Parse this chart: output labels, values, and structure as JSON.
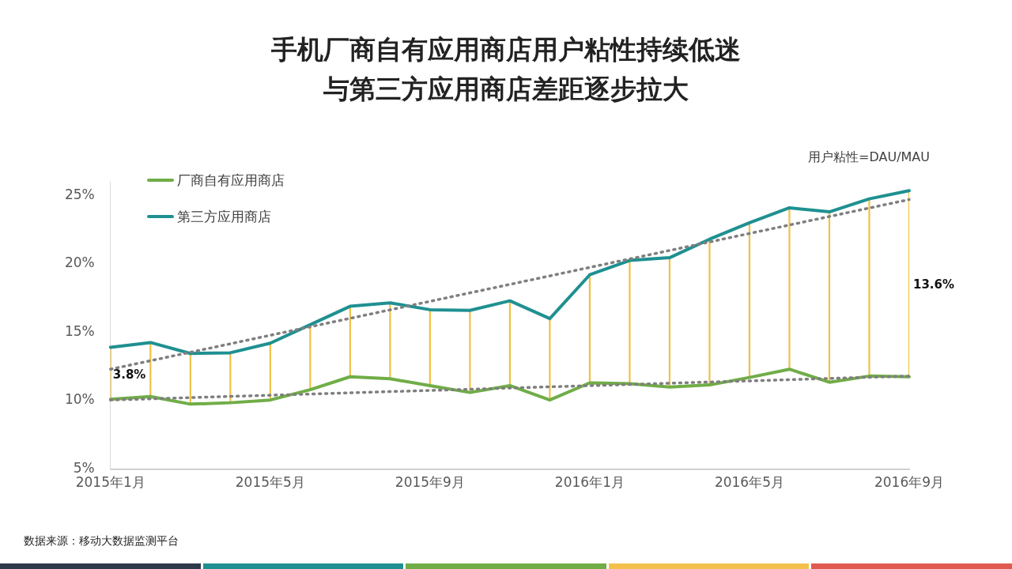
{
  "chart_data": {
    "type": "line",
    "title": "手机厂商自有应用商店用户粘性持续低迷与第三方应用商店差距逐步拉大",
    "categories": [
      "2015年1月",
      null,
      null,
      null,
      "2015年5月",
      null,
      null,
      null,
      "2015年9月",
      null,
      null,
      null,
      "2016年1月",
      null,
      null,
      null,
      "2016年5月",
      null,
      null,
      null,
      "2016年9月"
    ],
    "series": [
      {
        "type": "bar",
        "color": "#f0c040",
        "base": [
          10.1,
          10.3,
          9.75,
          9.85,
          10.05,
          10.8,
          11.75,
          11.6,
          11.1,
          10.6,
          11.1,
          10.05,
          11.3,
          11.25,
          11.0,
          11.15,
          11.7,
          12.3,
          11.35,
          11.8,
          11.75
        ],
        "values": [
          3.8,
          3.95,
          3.7,
          3.65,
          4.15,
          4.75,
          5.15,
          5.55,
          5.55,
          6.0,
          6.2,
          5.95,
          7.9,
          9.0,
          9.45,
          10.65,
          11.3,
          11.8,
          12.45,
          12.95,
          13.6
        ]
      },
      {
        "name": "厂商自有应用商店",
        "color": "#70ad47",
        "values": [
          10.1,
          10.3,
          9.75,
          9.85,
          10.05,
          10.8,
          11.75,
          11.6,
          11.1,
          10.6,
          11.1,
          10.05,
          11.3,
          11.25,
          11.0,
          11.15,
          11.7,
          12.3,
          11.35,
          11.8,
          11.75
        ]
      },
      {
        "name": "第三方应用商店",
        "color": "#1f9091",
        "values": [
          13.9,
          14.25,
          13.45,
          13.5,
          14.2,
          15.55,
          16.9,
          17.15,
          16.65,
          16.6,
          17.3,
          16.0,
          19.2,
          20.25,
          20.45,
          21.8,
          23.0,
          24.1,
          23.8,
          24.75,
          25.35
        ]
      },
      {
        "type": "line",
        "color": "#7f7f7f",
        "line_style": "dotted",
        "values": [
          10.05,
          null,
          null,
          null,
          null,
          null,
          null,
          null,
          null,
          null,
          null,
          null,
          null,
          null,
          null,
          null,
          null,
          null,
          null,
          null,
          11.8
        ]
      },
      {
        "type": "line",
        "color": "#7f7f7f",
        "line_style": "dotted",
        "values": [
          12.3,
          null,
          null,
          null,
          null,
          null,
          null,
          null,
          null,
          null,
          null,
          null,
          null,
          null,
          null,
          null,
          null,
          null,
          null,
          null,
          24.7
        ]
      }
    ],
    "ylim": [
      5,
      26
    ],
    "yticks": [
      {
        "value": 5,
        "label": "5%"
      },
      {
        "value": 10,
        "label": "10%"
      },
      {
        "value": 15,
        "label": "15%"
      },
      {
        "value": 20,
        "label": "20%"
      },
      {
        "value": 25,
        "label": "25%"
      }
    ],
    "grid": false,
    "legend": "top left",
    "marker": "none",
    "line_style": "solid",
    "annotations": [
      "3.8%",
      "13.6%",
      "用户粘性=DAU/MAU",
      "数据来源：移动大数据监测平台"
    ]
  }
}
